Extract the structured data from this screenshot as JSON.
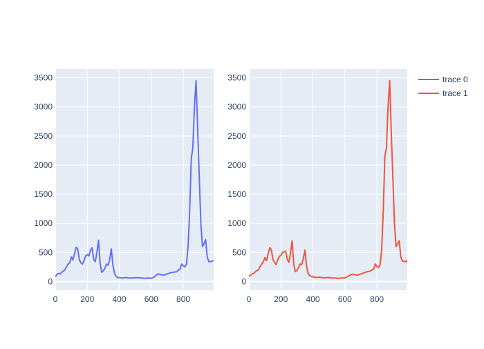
{
  "chart_data": [
    {
      "type": "line",
      "xlim": [
        0,
        990
      ],
      "ylim": [
        -150,
        3650
      ],
      "x_ticks": [
        0,
        200,
        400,
        600,
        800
      ],
      "y_ticks": [
        0,
        500,
        1000,
        1500,
        2000,
        2500,
        3000,
        3500
      ],
      "grid": true,
      "series": [
        {
          "name": "trace 0",
          "color": "#636efa",
          "x": [
            0,
            10,
            20,
            30,
            40,
            50,
            60,
            70,
            80,
            90,
            100,
            110,
            120,
            130,
            140,
            150,
            160,
            170,
            180,
            190,
            200,
            210,
            220,
            230,
            240,
            250,
            260,
            270,
            280,
            290,
            300,
            310,
            320,
            330,
            340,
            350,
            360,
            370,
            380,
            390,
            400,
            420,
            440,
            460,
            480,
            500,
            520,
            540,
            560,
            580,
            600,
            620,
            640,
            660,
            680,
            700,
            720,
            740,
            760,
            770,
            780,
            790,
            800,
            810,
            820,
            830,
            840,
            850,
            860,
            870,
            880,
            890,
            900,
            910,
            920,
            930,
            940,
            950,
            960,
            970,
            980,
            990
          ],
          "y": [
            80,
            120,
            140,
            130,
            160,
            180,
            200,
            260,
            300,
            320,
            420,
            370,
            480,
            590,
            560,
            380,
            320,
            300,
            360,
            440,
            460,
            440,
            540,
            580,
            380,
            340,
            500,
            710,
            310,
            160,
            180,
            230,
            300,
            280,
            380,
            560,
            280,
            140,
            90,
            70,
            65,
            60,
            70,
            60,
            60,
            65,
            65,
            60,
            55,
            60,
            55,
            80,
            130,
            120,
            110,
            130,
            150,
            160,
            170,
            200,
            210,
            300,
            270,
            250,
            300,
            600,
            1200,
            2100,
            2300,
            3000,
            3450,
            2600,
            1800,
            1000,
            600,
            650,
            720,
            420,
            340,
            340,
            350,
            360
          ]
        }
      ]
    },
    {
      "type": "line",
      "xlim": [
        0,
        990
      ],
      "ylim": [
        -150,
        3650
      ],
      "x_ticks": [
        0,
        200,
        400,
        600,
        800
      ],
      "y_ticks": [
        0,
        500,
        1000,
        1500,
        2000,
        2500,
        3000,
        3500
      ],
      "grid": true,
      "series": [
        {
          "name": "trace 1",
          "color": "#ef553b",
          "x": [
            0,
            10,
            20,
            30,
            40,
            50,
            60,
            70,
            80,
            90,
            100,
            110,
            120,
            130,
            140,
            150,
            160,
            170,
            180,
            190,
            200,
            210,
            220,
            230,
            240,
            250,
            260,
            270,
            280,
            290,
            300,
            310,
            320,
            330,
            340,
            350,
            360,
            370,
            380,
            390,
            400,
            420,
            440,
            460,
            480,
            500,
            520,
            540,
            560,
            580,
            600,
            620,
            640,
            660,
            680,
            700,
            720,
            740,
            760,
            770,
            780,
            790,
            800,
            810,
            820,
            830,
            840,
            850,
            860,
            870,
            880,
            890,
            900,
            910,
            920,
            930,
            940,
            950,
            960,
            970,
            980,
            990
          ],
          "y": [
            80,
            110,
            130,
            140,
            170,
            190,
            200,
            260,
            300,
            340,
            410,
            360,
            470,
            580,
            550,
            380,
            330,
            290,
            370,
            430,
            450,
            500,
            510,
            520,
            380,
            330,
            490,
            700,
            300,
            170,
            190,
            240,
            300,
            290,
            390,
            540,
            270,
            140,
            100,
            90,
            80,
            70,
            75,
            65,
            65,
            70,
            60,
            60,
            55,
            60,
            60,
            90,
            120,
            120,
            110,
            130,
            150,
            170,
            180,
            200,
            210,
            300,
            260,
            240,
            280,
            550,
            1200,
            2150,
            2300,
            3000,
            3450,
            2550,
            1800,
            1000,
            600,
            650,
            700,
            420,
            350,
            350,
            340,
            370
          ]
        }
      ]
    }
  ],
  "legend": {
    "placement": "top-right",
    "items": [
      {
        "name": "trace 0",
        "color": "#636efa"
      },
      {
        "name": "trace 1",
        "color": "#ef553b"
      }
    ]
  },
  "style": {
    "plot_bg": "#e5ecf6",
    "grid_color": "#ffffff",
    "text_color": "#2a3f5f"
  }
}
